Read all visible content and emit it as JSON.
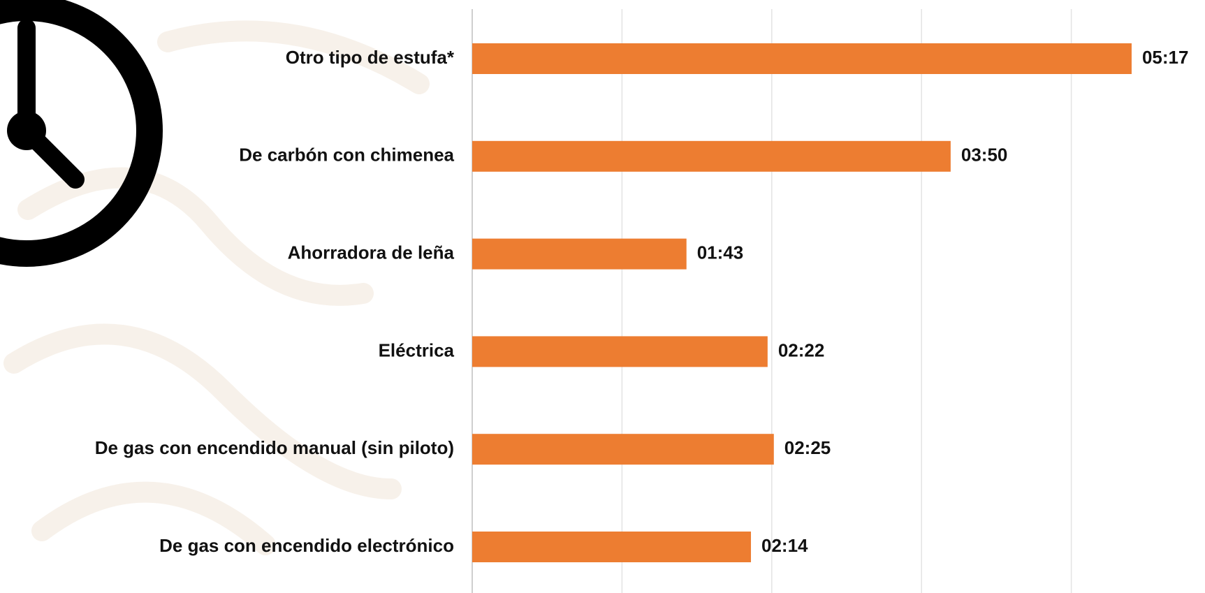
{
  "chart_data": {
    "type": "bar",
    "orientation": "horizontal",
    "categories": [
      "Otro tipo de estufa*",
      "De carbón con chimenea",
      "Ahorradora de leña",
      "Eléctrica",
      "De gas con encendido manual (sin piloto)",
      "De gas con encendido electrónico"
    ],
    "values": [
      317,
      230,
      103,
      142,
      145,
      134
    ],
    "value_labels": [
      "05:17",
      "03:50",
      "01:43",
      "02:22",
      "02:25",
      "02:14"
    ],
    "color": "#ed7d31",
    "xlim": [
      0,
      360
    ],
    "xticks": [
      0,
      72,
      144,
      216,
      288,
      360
    ],
    "grid": true
  }
}
